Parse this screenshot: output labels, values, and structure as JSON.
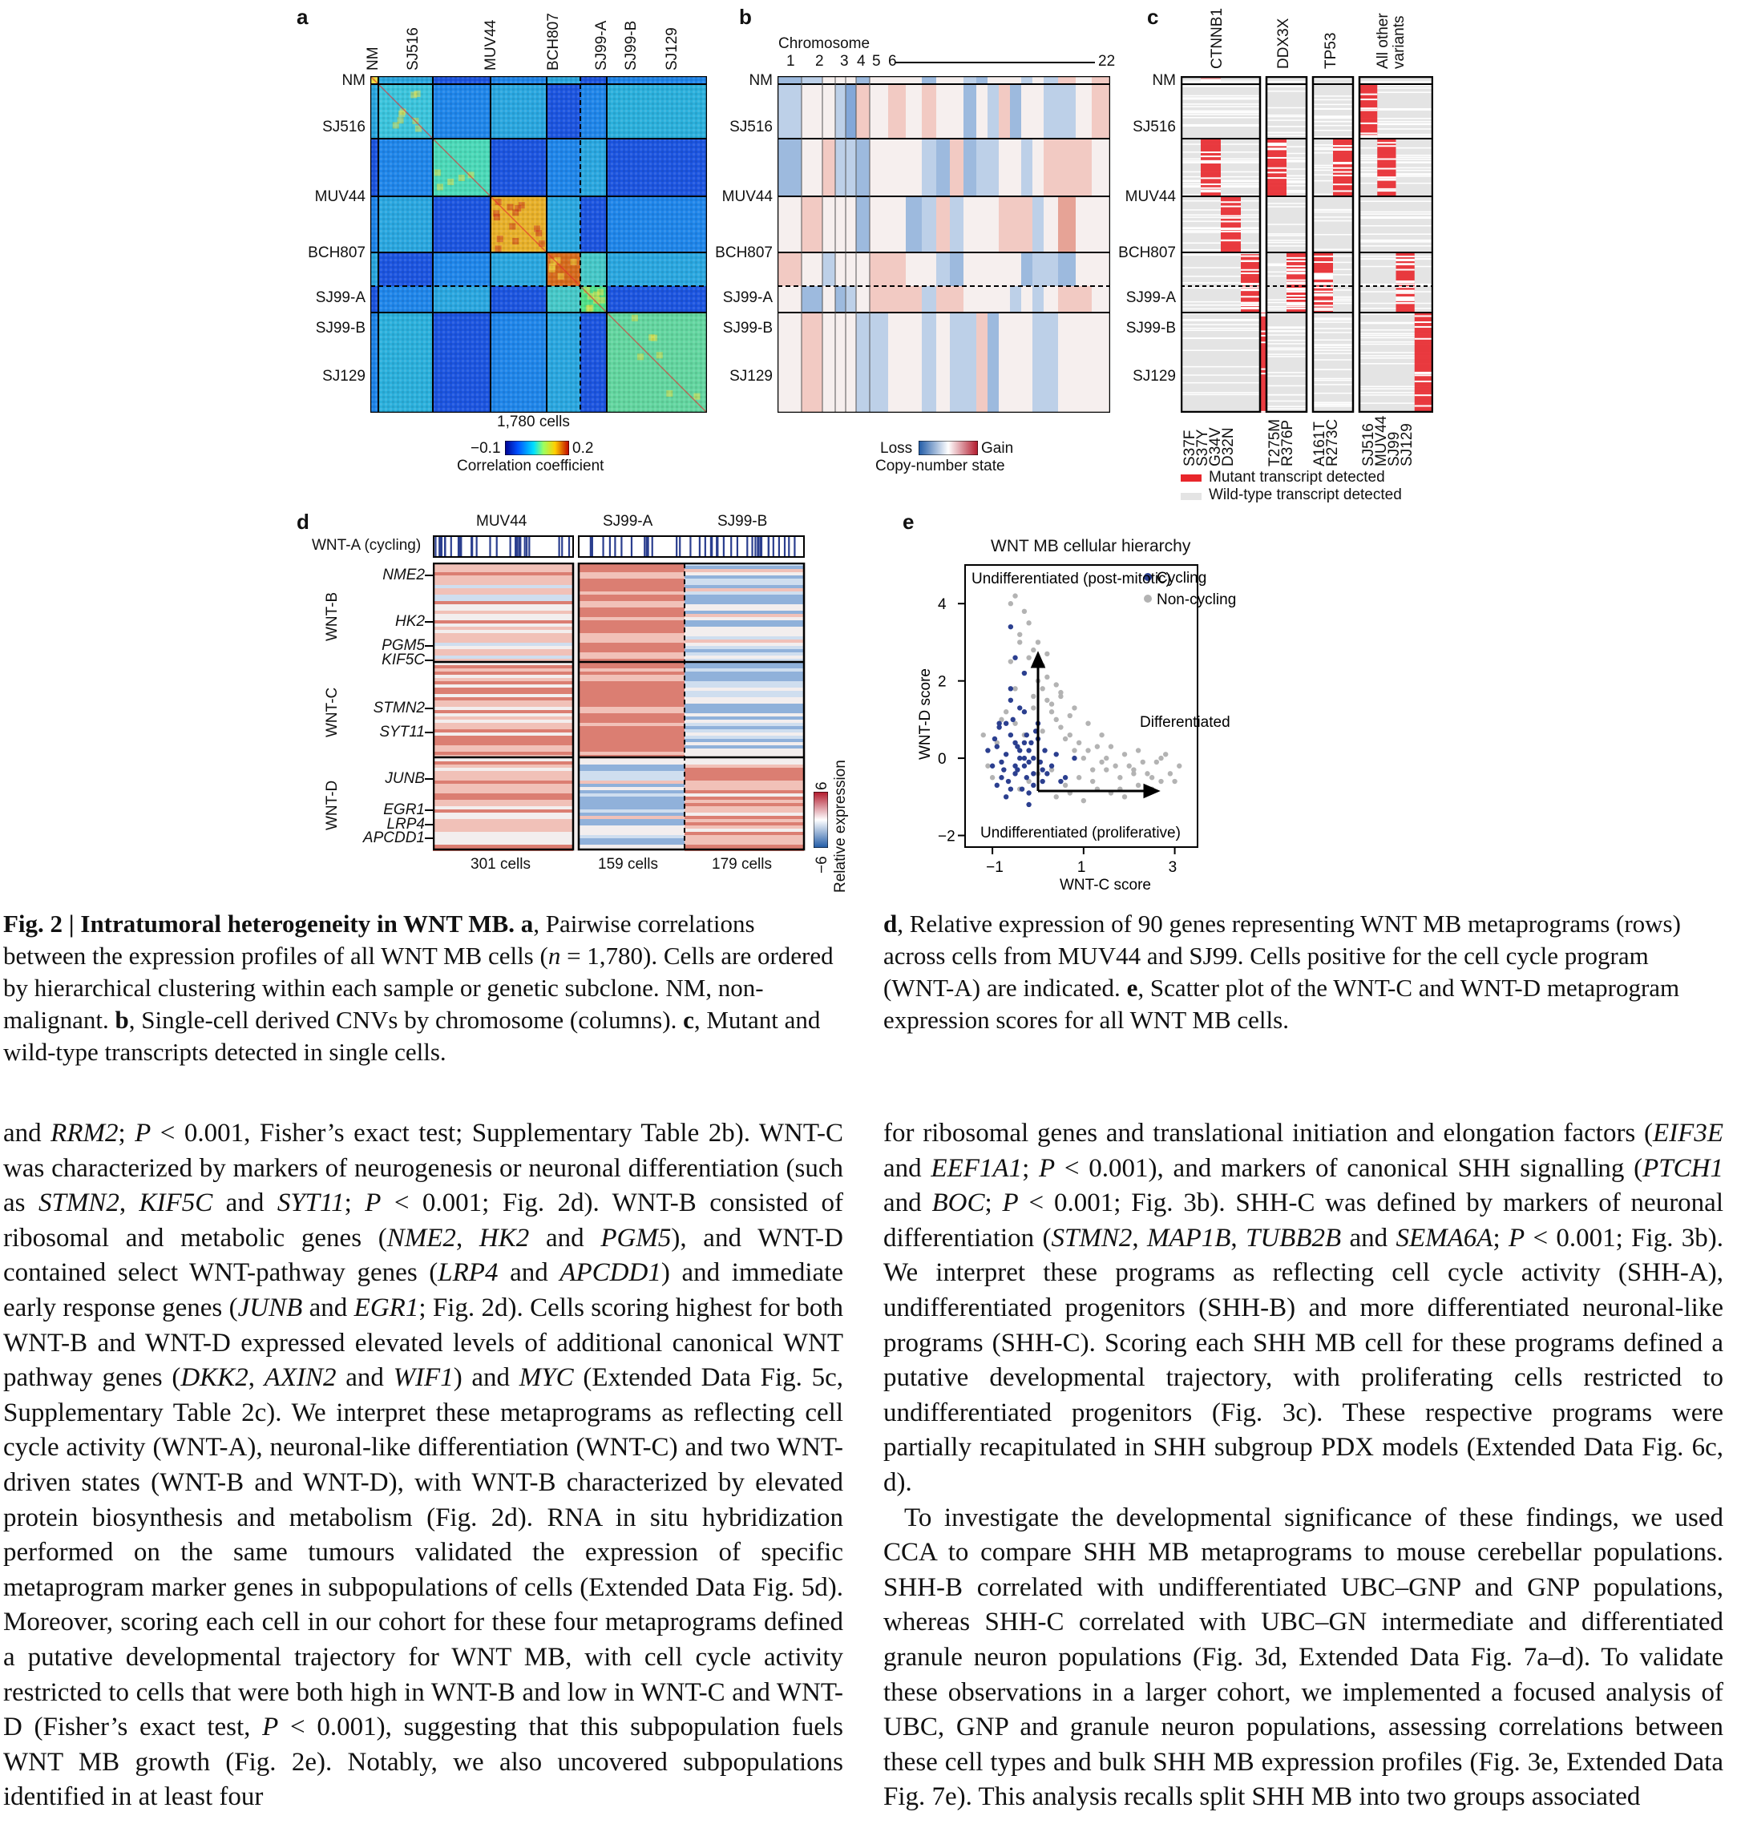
{
  "figure": {
    "panel_a": {
      "label": "a",
      "top_labels": [
        "NM",
        "SJ516",
        "MUV44",
        "BCH807",
        "SJ99-A",
        "SJ99-B",
        "SJ129"
      ],
      "row_labels": [
        "NM",
        "SJ516",
        "MUV44",
        "BCH807",
        "SJ99-A",
        "SJ99-B",
        "SJ129"
      ],
      "cells_label": "1,780 cells",
      "scale_min": "−0.1",
      "scale_max": "0.2",
      "scale_title": "Correlation coefficient"
    },
    "panel_b": {
      "label": "b",
      "chromosome_title": "Chromosome",
      "chromosome_ticks": [
        "1",
        "2",
        "3",
        "4",
        "5",
        "6",
        "22"
      ],
      "row_labels": [
        "NM",
        "SJ516",
        "MUV44",
        "BCH807",
        "SJ99-A",
        "SJ99-B",
        "SJ129"
      ],
      "loss_label": "Loss",
      "gain_label": "Gain",
      "scale_title": "Copy-number state"
    },
    "panel_c": {
      "label": "c",
      "row_labels": [
        "NM",
        "SJ516",
        "MUV44",
        "BCH807",
        "SJ99-A",
        "SJ99-B",
        "SJ129"
      ],
      "genes": [
        "CTNNB1",
        "DDX3X",
        "TP53",
        "All other variants"
      ],
      "ctnnb1_variants": [
        "S37F",
        "S37Y",
        "G34V",
        "D32N"
      ],
      "ddx3x_variants": [
        "T275M",
        "R376P"
      ],
      "tp53_variants": [
        "A161T",
        "R273C"
      ],
      "other_samples": [
        "SJ516",
        "MUV44",
        "SJ99",
        "SJ129"
      ],
      "legend_mutant": "Mutant transcript detected",
      "legend_wildtype": "Wild-type transcript detected",
      "mutant_color": "#e8262b",
      "wildtype_color": "#e4e4e4"
    },
    "panel_d": {
      "label": "d",
      "samples": [
        "MUV44",
        "SJ99-A",
        "SJ99-B"
      ],
      "cycling_label": "WNT-A (cycling)",
      "programs": [
        "WNT-B",
        "WNT-C",
        "WNT-D"
      ],
      "genes": [
        "NME2",
        "HK2",
        "PGM5",
        "KIF5C",
        "STMN2",
        "SYT11",
        "JUNB",
        "EGR1",
        "LRP4",
        "APCDD1"
      ],
      "cell_counts": [
        "301 cells",
        "159 cells",
        "179 cells"
      ],
      "scale_max": "6",
      "scale_min": "−6",
      "scale_title": "Relative expression"
    },
    "panel_e": {
      "label": "e"
    }
  },
  "chart_data": {
    "type": "scatter",
    "title": "WNT MB cellular hierarchy",
    "xlabel": "WNT-C score",
    "ylabel": "WNT-D score",
    "x_ticks": [
      "−1",
      "1",
      "3"
    ],
    "y_ticks": [
      "4",
      "2",
      "0",
      "−2"
    ],
    "xlim": [
      -1.6,
      3.5
    ],
    "ylim": [
      -2.3,
      5.0
    ],
    "legend_position": "top-right",
    "series": [
      {
        "name": "Cycling",
        "color": "#2b3f8f",
        "x": [
          -0.9,
          -0.7,
          -0.5,
          -0.3,
          -0.1,
          0.1,
          -0.8,
          -0.6,
          -0.4,
          -0.2,
          0.0,
          0.2,
          0.4,
          -1.0,
          -0.85,
          -0.65,
          -0.45,
          -0.25,
          -0.05,
          0.15,
          -0.75,
          -0.55,
          -0.35,
          -0.15,
          0.05,
          -0.95,
          -0.7,
          -0.5,
          -0.3,
          -0.1,
          0.3,
          -0.6,
          -0.4,
          -0.2,
          -0.8,
          -0.45,
          -0.25,
          0.6,
          -1.1,
          -0.9,
          -0.6,
          -0.3,
          0.0,
          0.5,
          0.8,
          -0.7,
          -0.5,
          -0.3,
          -0.1,
          -0.85,
          -0.6,
          -0.4,
          -0.2,
          0.1,
          -0.5,
          -0.3,
          -0.6,
          -0.2
        ],
        "y": [
          0.3,
          0.1,
          -0.2,
          0.4,
          0.0,
          -0.3,
          -0.5,
          0.6,
          0.2,
          -0.1,
          0.5,
          -0.4,
          0.1,
          -0.2,
          0.8,
          -0.6,
          0.3,
          -0.5,
          0.7,
          0.2,
          -0.3,
          1.0,
          -0.8,
          0.4,
          -0.1,
          0.5,
          0.9,
          -0.4,
          1.2,
          -0.7,
          -0.2,
          1.5,
          0.0,
          -0.9,
          -0.1,
          -0.3,
          0.6,
          -0.5,
          0.2,
          -0.7,
          1.8,
          -0.2,
          0.9,
          -0.6,
          0.0,
          -1.0,
          0.4,
          2.2,
          -0.4,
          0.9,
          -0.8,
          1.3,
          0.2,
          -0.6,
          2.6,
          0.0,
          3.4,
          -1.2
        ]
      },
      {
        "name": "Non-cycling",
        "color": "#b3b3b3",
        "x": [
          -0.6,
          -0.4,
          -0.2,
          0.0,
          0.2,
          0.4,
          0.6,
          0.8,
          1.0,
          1.2,
          1.4,
          1.6,
          1.8,
          2.0,
          2.2,
          2.4,
          2.6,
          2.8,
          3.0,
          -0.5,
          -0.3,
          -0.1,
          0.1,
          0.3,
          0.5,
          0.7,
          0.9,
          1.1,
          1.3,
          1.5,
          1.7,
          1.9,
          2.1,
          2.3,
          2.5,
          2.7,
          -0.7,
          -0.5,
          -0.3,
          -0.1,
          0.1,
          0.3,
          0.5,
          0.7,
          -0.6,
          -0.4,
          -0.2,
          0.0,
          0.2,
          0.4,
          -0.5,
          -0.3,
          -0.1,
          0.1,
          -0.4,
          -0.2,
          0.0,
          0.3,
          0.6,
          0.9,
          1.2,
          1.5,
          1.8,
          2.1,
          2.4,
          2.7,
          3.1,
          0.2,
          0.5,
          0.8,
          1.1,
          1.4,
          -0.9,
          -1.1,
          -1.2,
          -0.8,
          -1.0,
          0.4,
          0.7,
          1.0,
          1.3,
          1.6,
          1.9,
          2.2,
          2.5,
          2.9
        ],
        "y": [
          2.5,
          3.0,
          3.5,
          2.0,
          1.5,
          1.0,
          0.5,
          0.2,
          0.0,
          -0.3,
          -0.1,
          0.3,
          -0.5,
          -0.2,
          0.2,
          -0.4,
          -0.1,
          0.1,
          -0.6,
          4.2,
          3.8,
          2.8,
          1.8,
          1.2,
          0.8,
          0.6,
          0.4,
          0.2,
          0.3,
          0.0,
          -0.2,
          0.1,
          -0.3,
          -0.1,
          -0.5,
          0.0,
          1.2,
          1.8,
          2.2,
          1.6,
          2.4,
          1.4,
          1.7,
          1.1,
          4.0,
          3.2,
          2.6,
          3.0,
          2.1,
          1.9,
          0.9,
          0.6,
          1.3,
          0.7,
          -0.8,
          -0.6,
          -0.4,
          -0.3,
          -0.7,
          -0.5,
          -0.6,
          -0.3,
          -0.8,
          -0.4,
          -0.9,
          -0.6,
          -0.2,
          2.7,
          1.6,
          1.3,
          0.9,
          0.6,
          0.4,
          -0.2,
          0.6,
          1.0,
          -0.5,
          -1.0,
          -0.9,
          -1.1,
          -0.8,
          -0.9,
          -1.0,
          -0.7,
          -0.8,
          -0.4
        ]
      }
    ],
    "annotations": [
      "Undifferentiated (post-mitotic)",
      "Differentiated",
      "Undifferentiated (proliferative)"
    ]
  },
  "caption": {
    "left": {
      "fig_label": "Fig. 2 | Intratumoral heterogeneity in WNT MB.",
      "a_label": "a",
      "a_text1": ", Pairwise correlations between the expression profiles of all WNT MB cells (",
      "n_symbol": "n",
      "a_text2": " = 1,780). Cells are ordered by hierarchical clustering within each sample or genetic subclone. NM, non-malignant. ",
      "b_label": "b",
      "b_text": ", Single-cell derived CNVs by chromosome (columns). ",
      "c_label": "c",
      "c_text": ", Mutant and wild-type transcripts detected in single cells."
    },
    "right": {
      "d_label": "d",
      "d_text": ", Relative expression of 90 genes representing WNT MB metaprograms (rows) across cells from MUV44 and SJ99. Cells positive for the cell cycle program (WNT-A) are indicated. ",
      "e_label": "e",
      "e_text": ", Scatter plot of the WNT-C and WNT-D metaprogram expression scores for all WNT MB cells."
    }
  },
  "body": {
    "col1": [
      {
        "t": "and "
      },
      {
        "i": "RRM2"
      },
      {
        "t": "; "
      },
      {
        "i": "P"
      },
      {
        "t": " < 0.001, Fisher’s exact test; Supplementary Table 2b). WNT-C was characterized by markers of neurogenesis or neuronal differentiation (such as "
      },
      {
        "i": "STMN2"
      },
      {
        "t": ", "
      },
      {
        "i": "KIF5C"
      },
      {
        "t": " and "
      },
      {
        "i": "SYT11"
      },
      {
        "t": "; "
      },
      {
        "i": "P"
      },
      {
        "t": " < 0.001; Fig. 2d). WNT-B consisted of ribosomal and metabolic genes ("
      },
      {
        "i": "NME2"
      },
      {
        "t": ", "
      },
      {
        "i": "HK2"
      },
      {
        "t": " and "
      },
      {
        "i": "PGM5"
      },
      {
        "t": "), and WNT-D contained select WNT-pathway genes ("
      },
      {
        "i": "LRP4"
      },
      {
        "t": " and "
      },
      {
        "i": "APCDD1"
      },
      {
        "t": ") and immediate early response genes ("
      },
      {
        "i": "JUNB"
      },
      {
        "t": " and "
      },
      {
        "i": "EGR1"
      },
      {
        "t": "; Fig. 2d). Cells scoring highest for both WNT-B and WNT-D expressed elevated levels of additional canonical WNT pathway genes ("
      },
      {
        "i": "DKK2"
      },
      {
        "t": ", "
      },
      {
        "i": "AXIN2"
      },
      {
        "t": " and "
      },
      {
        "i": "WIF1"
      },
      {
        "t": ") and "
      },
      {
        "i": "MYC"
      },
      {
        "t": " (Extended Data Fig. 5c, Supplementary Table 2c). We interpret these metaprograms as reflecting cell cycle activity (WNT-A), neuronal-like differentiation (WNT-C) and two WNT-driven states (WNT-B and WNT-D), with WNT-B characterized by elevated protein biosynthesis and metabolism (Fig. 2d). RNA in situ hybridization performed on the same tumours validated the expression of specific metaprogram marker genes in subpopulations of cells (Extended Data Fig. 5d). Moreover, scoring each cell in our cohort for these four metaprograms defined a putative developmental trajectory for WNT MB, with cell cycle activity restricted to cells that were both high in WNT-B and low in WNT-C and WNT-D (Fisher’s exact test, "
      },
      {
        "i": "P"
      },
      {
        "t": " < 0.001), suggesting that this subpopulation fuels WNT MB growth (Fig. 2e). Notably, we also uncovered subpopulations identified in at least four"
      }
    ],
    "col2_p1": [
      {
        "t": "for ribosomal genes and translational initiation and elongation factors ("
      },
      {
        "i": "EIF3E"
      },
      {
        "t": " and "
      },
      {
        "i": "EEF1A1"
      },
      {
        "t": "; "
      },
      {
        "i": "P"
      },
      {
        "t": " < 0.001), and markers of canonical SHH signalling ("
      },
      {
        "i": "PTCH1"
      },
      {
        "t": " and "
      },
      {
        "i": "BOC"
      },
      {
        "t": "; "
      },
      {
        "i": "P"
      },
      {
        "t": " < 0.001; Fig. 3b). SHH-C was defined by markers of neuronal differentiation ("
      },
      {
        "i": "STMN2"
      },
      {
        "t": ", "
      },
      {
        "i": "MAP1B"
      },
      {
        "t": ", "
      },
      {
        "i": "TUBB2B"
      },
      {
        "t": " and "
      },
      {
        "i": "SEMA6A"
      },
      {
        "t": "; "
      },
      {
        "i": "P"
      },
      {
        "t": " < 0.001; Fig. 3b). We interpret these programs as reflecting cell cycle activity (SHH-A), undifferentiated progenitors (SHH-B) and more differentiated neuronal-like programs (SHH-C). Scoring each SHH MB cell for these programs defined a putative developmental trajectory, with proliferating cells restricted to undifferentiated progenitors (Fig. 3c). These respective programs were partially recapitulated in SHH subgroup PDX models (Extended Data Fig. 6c, d)."
      }
    ],
    "col2_p2": [
      {
        "t": "To investigate the developmental significance of these findings, we used CCA to compare SHH MB metaprograms to mouse cerebellar populations. SHH-B correlated with undifferentiated UBC–GNP and GNP populations, whereas SHH-C correlated with UBC–GN intermediate and differentiated granule neuron populations (Fig. 3d, Extended Data Fig. 7a–d). To validate these observations in a larger cohort, we implemented a focused analysis of UBC, GNP and granule neuron populations, assessing correlations between these cell types and bulk SHH MB expression profiles (Fig. 3e, Extended Data Fig. 7e). This analysis recalls split SHH MB into two groups associated"
      }
    ]
  }
}
